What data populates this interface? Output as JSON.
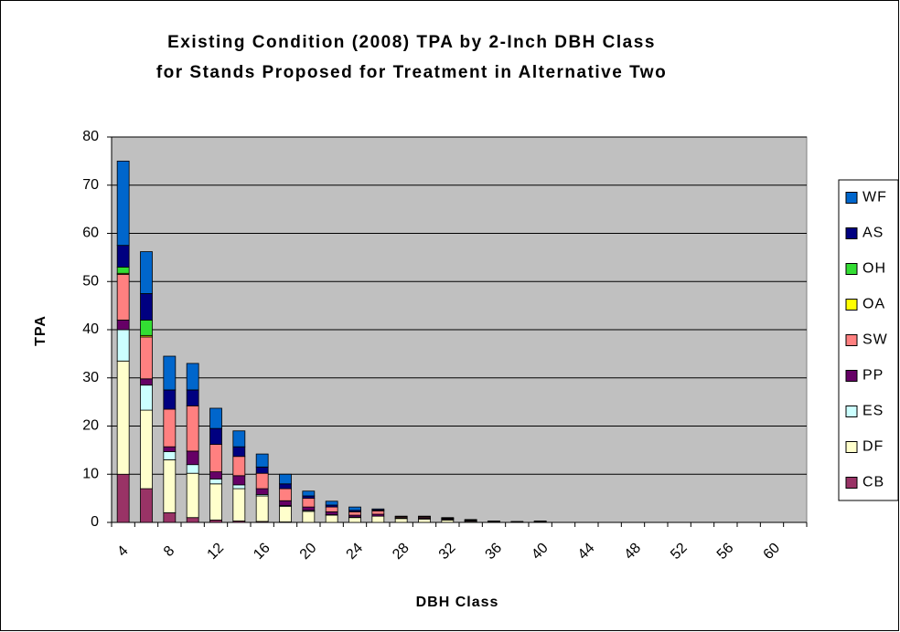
{
  "chart_data": {
    "type": "stacked_bar",
    "title": [
      "Existing Condition (2008) TPA by 2-Inch DBH Class",
      "for Stands Proposed for Treatment in Alternative Two"
    ],
    "x_label": "DBH Class",
    "y_label": "TPA",
    "categories": [
      "4",
      null,
      "8",
      null,
      "12",
      null,
      "16",
      null,
      "20",
      null,
      "24",
      null,
      "28",
      null,
      "32",
      null,
      "36",
      null,
      "40",
      null,
      "44",
      null,
      "48",
      null,
      "52",
      null,
      "56",
      null,
      "60",
      null
    ],
    "ylim": [
      0,
      80
    ],
    "yticks": [
      0,
      10,
      20,
      30,
      40,
      50,
      60,
      70,
      80
    ],
    "grid": true,
    "legend": "right",
    "series": [
      {
        "name": "CB",
        "color": "#993366",
        "values": [
          10,
          7,
          2,
          1,
          0.5,
          0.3,
          0.2,
          0.1,
          0,
          0,
          0,
          0,
          0,
          0,
          0,
          0,
          0,
          0,
          0,
          0,
          0,
          0,
          0,
          0,
          0,
          0,
          0,
          0,
          0,
          0
        ]
      },
      {
        "name": "DF",
        "color": "#ffffcc",
        "values": [
          23.5,
          16.3,
          11,
          9.2,
          7.5,
          6.7,
          5.3,
          3.2,
          2.3,
          1.5,
          1,
          1.3,
          0.8,
          0.7,
          0.5,
          0.2,
          0.1,
          0.1,
          0.1,
          0,
          0,
          0,
          0,
          0,
          0,
          0,
          0,
          0,
          0,
          0
        ]
      },
      {
        "name": "ES",
        "color": "#ccffff",
        "values": [
          6.5,
          5.2,
          1.7,
          1.8,
          1,
          0.8,
          0.3,
          0.2,
          0.2,
          0.1,
          0.1,
          0,
          0,
          0,
          0,
          0,
          0,
          0,
          0,
          0,
          0,
          0,
          0,
          0,
          0,
          0,
          0,
          0,
          0,
          0
        ]
      },
      {
        "name": "PP",
        "color": "#660066",
        "values": [
          2,
          1.3,
          1,
          2.8,
          1.5,
          1.9,
          1.2,
          1,
          0.7,
          0.6,
          0.4,
          0.4,
          0.1,
          0.2,
          0.2,
          0.2,
          0.1,
          0.1,
          0.1,
          0,
          0,
          0,
          0,
          0,
          0,
          0,
          0,
          0,
          0,
          0
        ]
      },
      {
        "name": "SW",
        "color": "#ff8080",
        "values": [
          9.5,
          8.7,
          7.8,
          9.4,
          5.7,
          4,
          3.2,
          2.5,
          1.8,
          1,
          0.7,
          0.7,
          0.2,
          0.2,
          0.1,
          0.1,
          0,
          0,
          0,
          0,
          0,
          0,
          0,
          0,
          0,
          0,
          0,
          0,
          0,
          0
        ]
      },
      {
        "name": "OA",
        "color": "#ffff00",
        "values": [
          0.2,
          0.3,
          0,
          0,
          0,
          0,
          0,
          0,
          0,
          0,
          0,
          0,
          0,
          0,
          0,
          0,
          0,
          0,
          0,
          0,
          0,
          0,
          0,
          0,
          0,
          0,
          0,
          0,
          0,
          0
        ]
      },
      {
        "name": "OH",
        "color": "#33dd33",
        "values": [
          1.3,
          3.2,
          0,
          0,
          0,
          0,
          0,
          0,
          0,
          0,
          0,
          0,
          0,
          0,
          0,
          0,
          0,
          0,
          0,
          0,
          0,
          0,
          0,
          0,
          0,
          0,
          0,
          0,
          0,
          0
        ]
      },
      {
        "name": "AS",
        "color": "#000080",
        "values": [
          4.5,
          5.5,
          4,
          3.3,
          3.3,
          2,
          1.3,
          1,
          0.5,
          0.4,
          0.3,
          0.2,
          0.1,
          0.1,
          0.1,
          0.1,
          0.1,
          0,
          0.1,
          0,
          0,
          0,
          0,
          0,
          0,
          0,
          0,
          0,
          0,
          0
        ]
      },
      {
        "name": "WF",
        "color": "#0066cc",
        "values": [
          17.5,
          8.7,
          7,
          5.5,
          4.2,
          3.3,
          2.7,
          2,
          1,
          0.8,
          0.7,
          0.2,
          0.1,
          0.1,
          0.1,
          0,
          0,
          0,
          0,
          0,
          0,
          0,
          0,
          0,
          0,
          0,
          0,
          0,
          0,
          0
        ]
      }
    ]
  }
}
